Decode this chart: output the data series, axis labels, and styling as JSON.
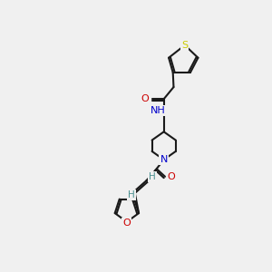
{
  "bg_color": "#f0f0f0",
  "line_color": "#1a1a1a",
  "bond_lw": 1.5,
  "atom_colors": {
    "O": "#cc0000",
    "N": "#0000cc",
    "S": "#cccc00",
    "H": "#4a9090"
  },
  "font_size": 7.5
}
